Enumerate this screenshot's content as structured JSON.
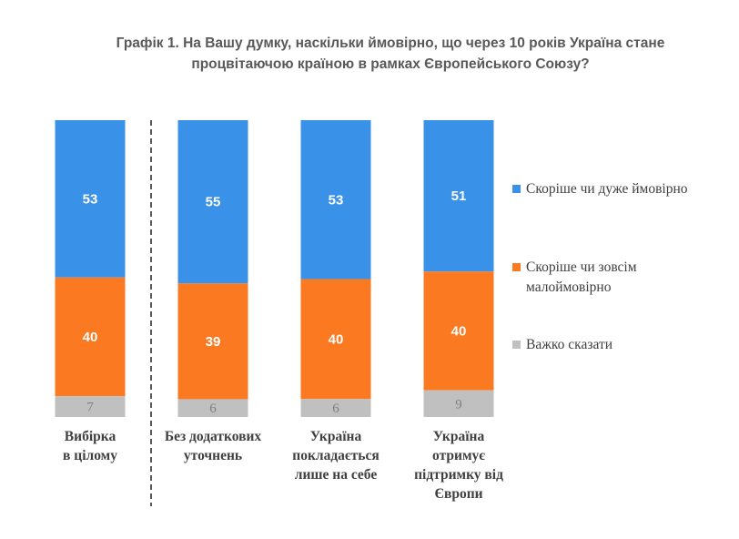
{
  "title_lines": [
    "Графік 1. На Вашу думку, наскільки ймовірно, що через 10 років Україна стане",
    "процвітаючою країною в рамках Європейського Союзу?"
  ],
  "chart_data": {
    "type": "bar",
    "stacked": true,
    "percent_stacked": true,
    "categories": [
      [
        "Вибірка",
        "в цілому"
      ],
      [
        "Без додаткових",
        "уточнень"
      ],
      [
        "Україна",
        "покладається",
        "лише на себе"
      ],
      [
        "Україна",
        "отримує",
        "підтримку від",
        "Європи"
      ]
    ],
    "series": [
      {
        "name": "Скоріше чи дуже ймовірно",
        "name_lines": [
          "Скоріше чи дуже ймовірно"
        ],
        "color": "#3a92e8",
        "label_color": "#ffffff",
        "values": [
          53,
          55,
          53,
          51
        ]
      },
      {
        "name": "Скоріше чи зовсім малоймовірно",
        "name_lines": [
          "Скоріше чи зовсім",
          "малоймовірно"
        ],
        "color": "#fb7a21",
        "label_color": "#ffffff",
        "values": [
          40,
          39,
          40,
          40
        ]
      },
      {
        "name": "Важко сказати",
        "name_lines": [
          "Важко сказати"
        ],
        "color": "#c0c0c0",
        "label_color": "#7f7f7f",
        "values": [
          7,
          6,
          6,
          9
        ]
      }
    ],
    "separator_after_category": 0,
    "legend_position": "right",
    "grid": false
  }
}
